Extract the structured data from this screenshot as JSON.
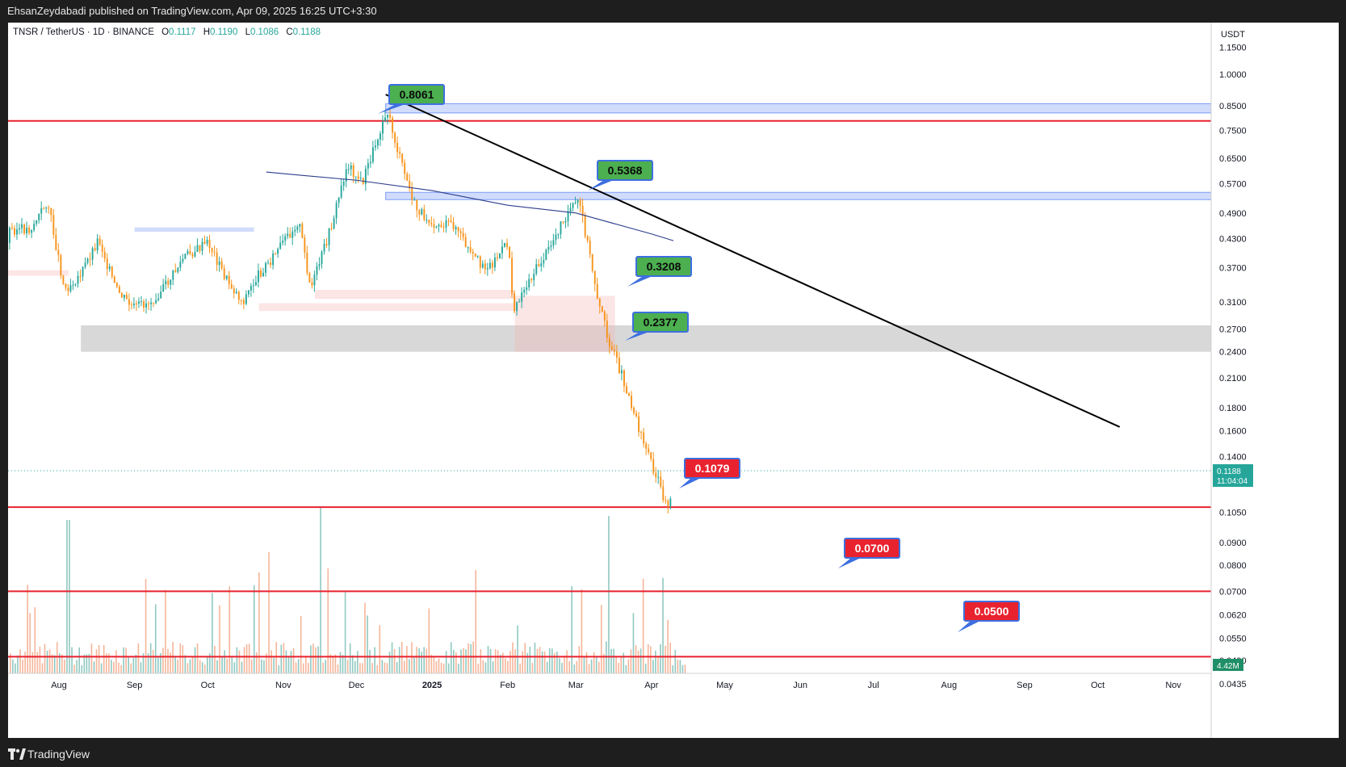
{
  "header": {
    "published": "EhsanZeydabadi published on TradingView.com, Apr 09, 2025 16:25 UTC+3:30"
  },
  "footer": {
    "brand": "TradingView"
  },
  "legend": {
    "symbol": "TNSR / TetherUS · 1D · BINANCE",
    "o_label": "O",
    "o": "0.1117",
    "h_label": "H",
    "h": "0.1190",
    "l_label": "L",
    "l": "0.1086",
    "c_label": "C",
    "c": "0.1188"
  },
  "colors": {
    "up": "#26a69a",
    "down": "#f7931a",
    "level": "#e8222f",
    "zone_blue": "#7b9cf5",
    "zone_gray": "#c8c8c8",
    "zone_red": "#f7b4b4",
    "ma": "#2c3e8c",
    "trend": "#000000",
    "label_green": "#4caf50",
    "label_red": "#e8222f"
  },
  "chart_data": {
    "type": "candlestick",
    "title": "TNSR / TetherUS · 1D · BINANCE",
    "y_axis": {
      "unit": "USDT",
      "scale": "log",
      "ticks": [
        "1.1500",
        "1.0000",
        "0.8500",
        "0.7500",
        "0.6500",
        "0.5700",
        "0.4900",
        "0.4300",
        "0.3700",
        "0.3100",
        "0.2700",
        "0.2400",
        "0.2100",
        "0.1800",
        "0.1600",
        "0.1400",
        "0.1050",
        "0.0900",
        "0.0800",
        "0.0700",
        "0.0620",
        "0.0550",
        "0.0490",
        "0.0435"
      ]
    },
    "x_axis": {
      "ticks": [
        "Aug",
        "Sep",
        "Oct",
        "Nov",
        "Dec",
        "2025",
        "Feb",
        "Mar",
        "Apr",
        "May",
        "Jun",
        "Jul",
        "Aug",
        "Sep",
        "Oct",
        "Nov"
      ]
    },
    "price_series": [
      {
        "date": "2024-07-20",
        "close": 0.45
      },
      {
        "date": "2024-07-27",
        "close": 0.52
      },
      {
        "date": "2024-08-03",
        "close": 0.33
      },
      {
        "date": "2024-08-10",
        "close": 0.36
      },
      {
        "date": "2024-08-17",
        "close": 0.43
      },
      {
        "date": "2024-08-24",
        "close": 0.33
      },
      {
        "date": "2024-08-31",
        "close": 0.3
      },
      {
        "date": "2024-09-07",
        "close": 0.31
      },
      {
        "date": "2024-09-14",
        "close": 0.34
      },
      {
        "date": "2024-09-21",
        "close": 0.39
      },
      {
        "date": "2024-10-01",
        "close": 0.42
      },
      {
        "date": "2024-10-08",
        "close": 0.35
      },
      {
        "date": "2024-10-15",
        "close": 0.31
      },
      {
        "date": "2024-10-22",
        "close": 0.36
      },
      {
        "date": "2024-10-29",
        "close": 0.4
      },
      {
        "date": "2024-11-07",
        "close": 0.47
      },
      {
        "date": "2024-11-12",
        "close": 0.33
      },
      {
        "date": "2024-11-20",
        "close": 0.45
      },
      {
        "date": "2024-11-27",
        "close": 0.63
      },
      {
        "date": "2024-12-03",
        "close": 0.57
      },
      {
        "date": "2024-12-10",
        "close": 0.74
      },
      {
        "date": "2024-12-13",
        "close": 0.84
      },
      {
        "date": "2024-12-18",
        "close": 0.66
      },
      {
        "date": "2024-12-25",
        "close": 0.5
      },
      {
        "date": "2025-01-03",
        "close": 0.46
      },
      {
        "date": "2025-01-10",
        "close": 0.46
      },
      {
        "date": "2025-01-17",
        "close": 0.39
      },
      {
        "date": "2025-01-24",
        "close": 0.37
      },
      {
        "date": "2025-02-01",
        "close": 0.42
      },
      {
        "date": "2025-02-03",
        "close": 0.3
      },
      {
        "date": "2025-02-10",
        "close": 0.35
      },
      {
        "date": "2025-02-17",
        "close": 0.4
      },
      {
        "date": "2025-02-24",
        "close": 0.48
      },
      {
        "date": "2025-03-02",
        "close": 0.52
      },
      {
        "date": "2025-03-05",
        "close": 0.43
      },
      {
        "date": "2025-03-10",
        "close": 0.31
      },
      {
        "date": "2025-03-15",
        "close": 0.245
      },
      {
        "date": "2025-03-20",
        "close": 0.21
      },
      {
        "date": "2025-03-27",
        "close": 0.16
      },
      {
        "date": "2025-04-03",
        "close": 0.125
      },
      {
        "date": "2025-04-07",
        "close": 0.1079
      },
      {
        "date": "2025-04-09",
        "close": 0.1188
      }
    ],
    "ma_series": [
      {
        "date": "2024-11-01",
        "value": 0.6
      },
      {
        "date": "2024-12-01",
        "value": 0.58
      },
      {
        "date": "2025-01-01",
        "value": 0.55
      },
      {
        "date": "2025-02-01",
        "value": 0.51
      },
      {
        "date": "2025-03-01",
        "value": 0.49
      },
      {
        "date": "2025-04-01",
        "value": 0.44
      }
    ],
    "levels": [
      0.8061,
      0.1079,
      0.07,
      0.05
    ],
    "zones": [
      {
        "type": "resistance",
        "from": 0.82,
        "to": 0.86
      },
      {
        "type": "resistance",
        "from": 0.525,
        "to": 0.545
      },
      {
        "type": "support",
        "from": 0.24,
        "to": 0.275
      }
    ],
    "trendline": [
      {
        "date": "2024-12-13",
        "value": 0.84
      },
      {
        "date": "2025-10-10",
        "value": 0.163
      }
    ],
    "annotations": [
      {
        "text": "0.8061",
        "style": "green"
      },
      {
        "text": "0.5368",
        "style": "green"
      },
      {
        "text": "0.3208",
        "style": "green"
      },
      {
        "text": "0.2377",
        "style": "green"
      },
      {
        "text": "0.1079",
        "style": "red"
      },
      {
        "text": "0.0700",
        "style": "red"
      },
      {
        "text": "0.0500",
        "style": "red"
      }
    ],
    "last_price": {
      "value": "0.1188",
      "countdown": "11:04:04"
    },
    "volume_last": "4.42M"
  }
}
